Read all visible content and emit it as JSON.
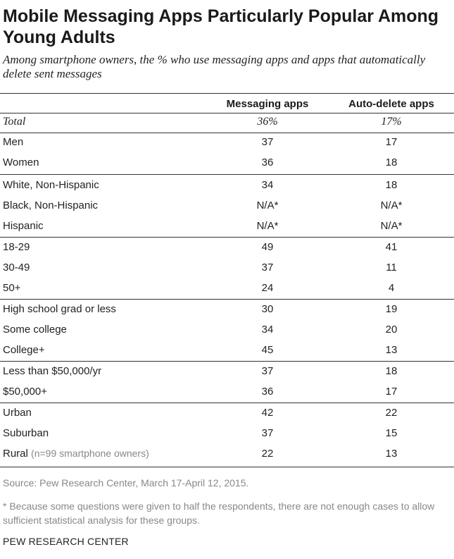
{
  "header": {
    "title": "Mobile Messaging Apps Particularly Popular Among Young Adults",
    "subtitle": "Among smartphone owners, the % who use messaging apps and apps that automatically delete sent messages"
  },
  "chart_data": {
    "type": "table",
    "columns": [
      "Messaging apps",
      "Auto-delete apps"
    ],
    "rows": [
      {
        "label": "Total",
        "note": "",
        "values": [
          "36%",
          "17%"
        ]
      },
      {
        "label": "Men",
        "note": "",
        "values": [
          "37",
          "17"
        ]
      },
      {
        "label": "Women",
        "note": "",
        "values": [
          "36",
          "18"
        ]
      },
      {
        "label": "White, Non-Hispanic",
        "note": "",
        "values": [
          "34",
          "18"
        ]
      },
      {
        "label": "Black, Non-Hispanic",
        "note": "",
        "values": [
          "N/A*",
          "N/A*"
        ]
      },
      {
        "label": "Hispanic",
        "note": "",
        "values": [
          "N/A*",
          "N/A*"
        ]
      },
      {
        "label": "18-29",
        "note": "",
        "values": [
          "49",
          "41"
        ]
      },
      {
        "label": "30-49",
        "note": "",
        "values": [
          "37",
          "11"
        ]
      },
      {
        "label": "50+",
        "note": "",
        "values": [
          "24",
          "4"
        ]
      },
      {
        "label": "High school grad or less",
        "note": "",
        "values": [
          "30",
          "19"
        ]
      },
      {
        "label": "Some college",
        "note": "",
        "values": [
          "34",
          "20"
        ]
      },
      {
        "label": "College+",
        "note": "",
        "values": [
          "45",
          "13"
        ]
      },
      {
        "label": "Less than $50,000/yr",
        "note": "",
        "values": [
          "37",
          "18"
        ]
      },
      {
        "label": "$50,000+",
        "note": "",
        "values": [
          "36",
          "17"
        ]
      },
      {
        "label": "Urban",
        "note": "",
        "values": [
          "42",
          "22"
        ]
      },
      {
        "label": "Suburban",
        "note": "",
        "values": [
          "37",
          "15"
        ]
      },
      {
        "label": "Rural",
        "note": "(n=99 smartphone owners)",
        "values": [
          "22",
          "13"
        ]
      }
    ]
  },
  "footer": {
    "source": "Source: Pew Research Center, March 17-April 12, 2015.",
    "footnote": "* Because some questions were given to half the respondents, there are not enough cases to allow sufficient statistical analysis for these groups.",
    "brand": "PEW RESEARCH CENTER"
  }
}
